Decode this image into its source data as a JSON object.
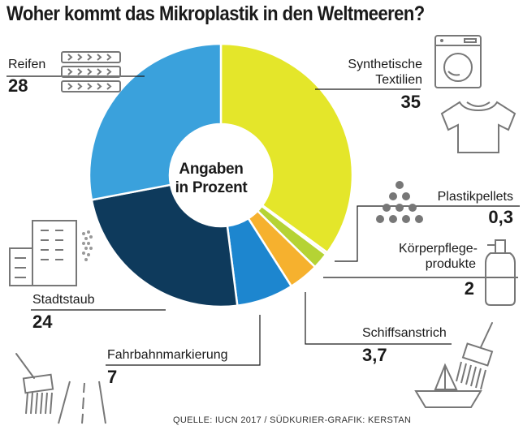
{
  "title": "Woher kommt das Mikroplastik in den Weltmeeren?",
  "center_label": [
    "Angaben",
    "in Prozent"
  ],
  "source": "QUELLE: IUCN 2017 / SÜDKURIER-GRAFIK: KERSTAN",
  "chart_data": {
    "type": "pie",
    "donut": true,
    "unit": "Prozent",
    "slices": [
      {
        "label": "Synthetische Textilien",
        "label_lines": [
          "Synthetische",
          "Textilien"
        ],
        "value": 35,
        "display": "35",
        "color": "#e4e62a"
      },
      {
        "label": "Plastikpellets",
        "label_lines": [
          "Plastikpellets"
        ],
        "value": 0.3,
        "display": "0,3",
        "color": "#f4ee9a"
      },
      {
        "label": "Körperpflegeprodukte",
        "label_lines": [
          "Körperpflege-",
          "produkte"
        ],
        "value": 2,
        "display": "2",
        "color": "#b5d334"
      },
      {
        "label": "Schiffsanstrich",
        "label_lines": [
          "Schiffsanstrich"
        ],
        "value": 3.7,
        "display": "3,7",
        "color": "#f6b12e"
      },
      {
        "label": "Fahrbahnmarkierung",
        "label_lines": [
          "Fahrbahnmarkierung"
        ],
        "value": 7,
        "display": "7",
        "color": "#1d86cf"
      },
      {
        "label": "Stadtstaub",
        "label_lines": [
          "Stadtstaub"
        ],
        "value": 24,
        "display": "24",
        "color": "#0e3a5c"
      },
      {
        "label": "Reifen",
        "label_lines": [
          "Reifen"
        ],
        "value": 28,
        "display": "28",
        "color": "#3aa1dc"
      }
    ]
  },
  "icons": [
    "tire-treads-icon",
    "washing-machine-icon",
    "shirt-icon",
    "pellets-icon",
    "spray-bottle-icon",
    "city-buildings-icon",
    "brush-icon",
    "road-icon",
    "boat-icon"
  ]
}
